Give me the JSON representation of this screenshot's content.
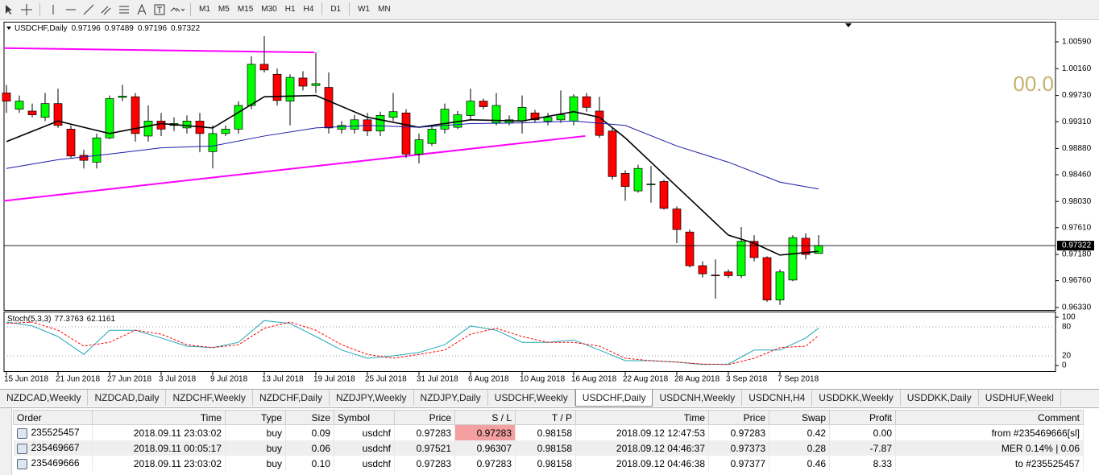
{
  "toolbar": {
    "timeframes": [
      "M1",
      "M5",
      "M15",
      "M30",
      "H1",
      "H4",
      "D1",
      "W1",
      "MN"
    ]
  },
  "chart_data": [
    {
      "type": "candlestick",
      "title": "USDCHF,Daily",
      "categories": [
        "15 Jun 2018",
        null,
        null,
        null,
        "21 Jun 2018",
        null,
        null,
        null,
        "27 Jun 2018",
        null,
        null,
        null,
        "3 Jul 2018",
        null,
        null,
        null,
        "9 Jul 2018",
        null,
        null,
        null,
        "13 Jul 2018",
        null,
        null,
        null,
        "19 Jul 2018",
        null,
        null,
        null,
        "25 Jul 2018",
        null,
        null,
        null,
        "31 Jul 2018",
        null,
        null,
        null,
        "6 Aug 2018",
        null,
        null,
        null,
        "10 Aug 2018",
        null,
        null,
        null,
        "16 Aug 2018",
        null,
        null,
        null,
        "22 Aug 2018",
        null,
        null,
        null,
        "28 Aug 2018",
        null,
        null,
        null,
        "3 Sep 2018",
        null,
        null,
        null,
        "7 Sep 2018",
        null,
        null,
        null
      ],
      "open": [
        0.9977,
        0.9951,
        0.9948,
        0.9938,
        0.996,
        0.9919,
        0.9877,
        0.9866,
        0.9905,
        0.997,
        0.9971,
        0.9908,
        0.9932,
        0.9925,
        0.9921,
        0.9932,
        0.9883,
        0.9912,
        0.9919,
        0.9957,
        1.0023,
        1.0007,
        0.9964,
        1.0001,
        0.9989,
        0.9986,
        0.9919,
        0.9919,
        0.9934,
        0.9916,
        0.9938,
        0.9945,
        0.9879,
        0.9896,
        0.9919,
        0.9922,
        0.9941,
        0.9964,
        0.9929,
        0.9929,
        0.9932,
        0.9945,
        0.9932,
        0.9934,
        0.9932,
        0.9971,
        0.9948,
        0.9916,
        0.9848,
        0.982,
        0.983,
        0.9835,
        0.9791,
        0.9754,
        0.97,
        0.9685,
        0.969,
        0.9684,
        0.9739,
        0.9713,
        0.9645,
        0.9677,
        0.9744,
        0.97196
      ],
      "high": [
        0.999,
        0.9973,
        0.996,
        0.9977,
        0.9984,
        0.9925,
        0.9886,
        0.9912,
        0.9973,
        0.999,
        0.9977,
        0.9957,
        0.9945,
        0.9938,
        0.9941,
        0.9945,
        0.9925,
        0.9925,
        0.9964,
        1.0036,
        1.0068,
        1.0016,
        1.0007,
        1.0012,
        1.0042,
        1.001,
        0.9932,
        0.9942,
        0.9945,
        0.9947,
        0.9977,
        0.9951,
        0.9912,
        0.9925,
        0.996,
        0.9948,
        0.9984,
        0.9968,
        0.9977,
        0.9941,
        0.9973,
        0.995,
        0.9945,
        0.9981,
        0.9975,
        0.9977,
        0.9971,
        0.9921,
        0.9853,
        0.9862,
        0.986,
        0.9838,
        0.9795,
        0.9758,
        0.9707,
        0.971,
        0.9694,
        0.9762,
        0.9749,
        0.9715,
        0.9694,
        0.9749,
        0.9752,
        0.97489
      ],
      "low": [
        0.9945,
        0.9945,
        0.9938,
        0.9932,
        0.9921,
        0.9873,
        0.9856,
        0.9856,
        0.9903,
        0.9964,
        0.9899,
        0.9899,
        0.9908,
        0.9916,
        0.9912,
        0.9882,
        0.9856,
        0.9908,
        0.9912,
        0.9951,
        1.001,
        0.9957,
        0.9925,
        0.9981,
        0.9977,
        0.9912,
        0.9912,
        0.9912,
        0.9908,
        0.9908,
        0.9932,
        0.9873,
        0.9864,
        0.9892,
        0.9912,
        0.9919,
        0.9934,
        0.9951,
        0.9925,
        0.9925,
        0.9912,
        0.9929,
        0.9925,
        0.9929,
        0.9925,
        0.9947,
        0.9905,
        0.9838,
        0.9804,
        0.9817,
        0.9801,
        0.979,
        0.9736,
        0.9697,
        0.9681,
        0.9647,
        0.968,
        0.968,
        0.9707,
        0.9642,
        0.9637,
        0.9675,
        0.971,
        0.97196
      ],
      "close": [
        0.9964,
        0.9964,
        0.9942,
        0.996,
        0.9925,
        0.9876,
        0.9869,
        0.9905,
        0.9968,
        0.9972,
        0.9912,
        0.9932,
        0.9919,
        0.9928,
        0.9932,
        0.9912,
        0.9912,
        0.9919,
        0.9957,
        1.0023,
        1.0014,
        0.9965,
        1.0002,
        0.9988,
        0.9992,
        0.9921,
        0.9925,
        0.9934,
        0.9916,
        0.9941,
        0.9947,
        0.9879,
        0.9902,
        0.9919,
        0.9951,
        0.9942,
        0.9964,
        0.9955,
        0.9957,
        0.9934,
        0.9954,
        0.9934,
        0.9938,
        0.9942,
        0.9971,
        0.9954,
        0.9909,
        0.9843,
        0.9827,
        0.9856,
        0.9831,
        0.9792,
        0.9758,
        0.97,
        0.9687,
        0.9684,
        0.9684,
        0.9739,
        0.9713,
        0.9645,
        0.969,
        0.9745,
        0.9718,
        0.97322
      ],
      "up_color": "#00ff00",
      "down_color": "#ff0000",
      "lines": [
        {
          "color": "#000000",
          "x": [
            0,
            4,
            8,
            12,
            16,
            20,
            24,
            28,
            32,
            36,
            40,
            44,
            46,
            48,
            52,
            56,
            58,
            60,
            63
          ],
          "values": [
            0.9899,
            0.9932,
            0.9912,
            0.9928,
            0.9921,
            0.9971,
            0.9973,
            0.9938,
            0.9922,
            0.9934,
            0.9932,
            0.9947,
            0.9938,
            0.9905,
            0.9827,
            0.9749,
            0.9736,
            0.9717,
            0.9723
          ]
        },
        {
          "color": "#1a1aa8",
          "x": [
            0,
            4,
            8,
            12,
            16,
            20,
            24,
            28,
            32,
            36,
            40,
            44,
            48,
            52,
            56,
            60,
            63
          ],
          "values": [
            0.9856,
            0.987,
            0.9879,
            0.9889,
            0.9892,
            0.9908,
            0.9921,
            0.9925,
            0.9922,
            0.9928,
            0.9929,
            0.9932,
            0.9925,
            0.9892,
            0.9866,
            0.9834,
            0.9823
          ]
        }
      ],
      "trendlines": [
        {
          "color": "#ff00ff",
          "x": [
            -0.2,
            23.9
          ],
          "values": [
            1.0049,
            1.0042
          ]
        },
        {
          "color": "#ff00ff",
          "x": [
            -0.2,
            44.9
          ],
          "values": [
            0.9804,
            0.9908
          ]
        }
      ],
      "countdown": "00.0",
      "ylim": [
        0.9629,
        1.009
      ],
      "yticks": [
        {
          "value": 1.0059,
          "label": "1.00590"
        },
        {
          "value": 1.0016,
          "label": "1.00160"
        },
        {
          "value": 0.9973,
          "label": "0.99730"
        },
        {
          "value": 0.9931,
          "label": "0.99310"
        },
        {
          "value": 0.9888,
          "label": "0.98880"
        },
        {
          "value": 0.9846,
          "label": "0.98460"
        },
        {
          "value": 0.9803,
          "label": "0.98030"
        },
        {
          "value": 0.9761,
          "label": "0.97610"
        },
        {
          "value": 0.9718,
          "label": "0.97180"
        },
        {
          "value": 0.9676,
          "label": "0.96760"
        },
        {
          "value": 0.9633,
          "label": "0.96330"
        }
      ]
    },
    {
      "type": "line",
      "title": "Stoch(5,3,3)",
      "x": [
        0,
        2,
        4,
        6,
        8,
        10,
        12,
        14,
        16,
        18,
        20,
        22,
        24,
        26,
        28,
        30,
        32,
        34,
        36,
        38,
        40,
        42,
        44,
        46,
        48,
        50,
        52,
        54,
        56,
        58,
        60,
        62,
        63
      ],
      "series": [
        {
          "color": "#20a8b8",
          "dash": false,
          "values": [
            90,
            82,
            60,
            23,
            73,
            73,
            57,
            40,
            37,
            48,
            93,
            87,
            60,
            32,
            15,
            20,
            27,
            43,
            82,
            73,
            48,
            48,
            53,
            32,
            10,
            10,
            7,
            2,
            3,
            32,
            32,
            57,
            77.3763
          ]
        },
        {
          "color": "#ff0000",
          "dash": true,
          "values": [
            87,
            90,
            73,
            40,
            48,
            73,
            65,
            43,
            37,
            43,
            77,
            90,
            73,
            43,
            23,
            15,
            23,
            32,
            65,
            77,
            60,
            48,
            48,
            40,
            15,
            10,
            7,
            3,
            2,
            15,
            37,
            40,
            62.1161
          ]
        }
      ],
      "ylim": [
        0,
        100
      ],
      "yticks": [
        100,
        80,
        20,
        0
      ]
    }
  ],
  "tabs": {
    "items": [
      "NZDCAD,Weekly",
      "NZDCAD,Daily",
      "NZDCHF,Weekly",
      "NZDCHF,Daily",
      "NZDJPY,Weekly",
      "NZDJPY,Daily",
      "USDCHF,Weekly",
      "USDCHF,Daily",
      "USDCNH,Weekly",
      "USDCNH,H4",
      "USDDKK,Weekly",
      "USDDKK,Daily",
      "USDHUF,Weekl"
    ],
    "active_index": 7
  },
  "table": {
    "columns": [
      "Order",
      "Time",
      "Type",
      "Size",
      "Symbol",
      "Price",
      "S / L",
      "T / P",
      "Time",
      "Price",
      "Swap",
      "Profit",
      "Comment"
    ],
    "rows": [
      [
        "235525457",
        "2018.09.11 23:03:02",
        "buy",
        "0.09",
        "usdchf",
        "0.97283",
        "0.97283",
        "0.98158",
        "2018.09.12 12:47:53",
        "0.97283",
        "0.42",
        "0.00",
        "from #235469666[sl]"
      ],
      [
        "235469667",
        "2018.09.11 00:05:17",
        "buy",
        "0.06",
        "usdchf",
        "0.97521",
        "0.96307",
        "0.98158",
        "2018.09.12 04:46:37",
        "0.97373",
        "0.28",
        "-7.87",
        "MER 0.14% | 0.06"
      ],
      [
        "235469666",
        "2018.09.11 23:03:02",
        "buy",
        "0.10",
        "usdchf",
        "0.97283",
        "0.97283",
        "0.98158",
        "2018.09.12 04:46:38",
        "0.97377",
        "0.46",
        "8.33",
        "to #235525457"
      ]
    ]
  }
}
